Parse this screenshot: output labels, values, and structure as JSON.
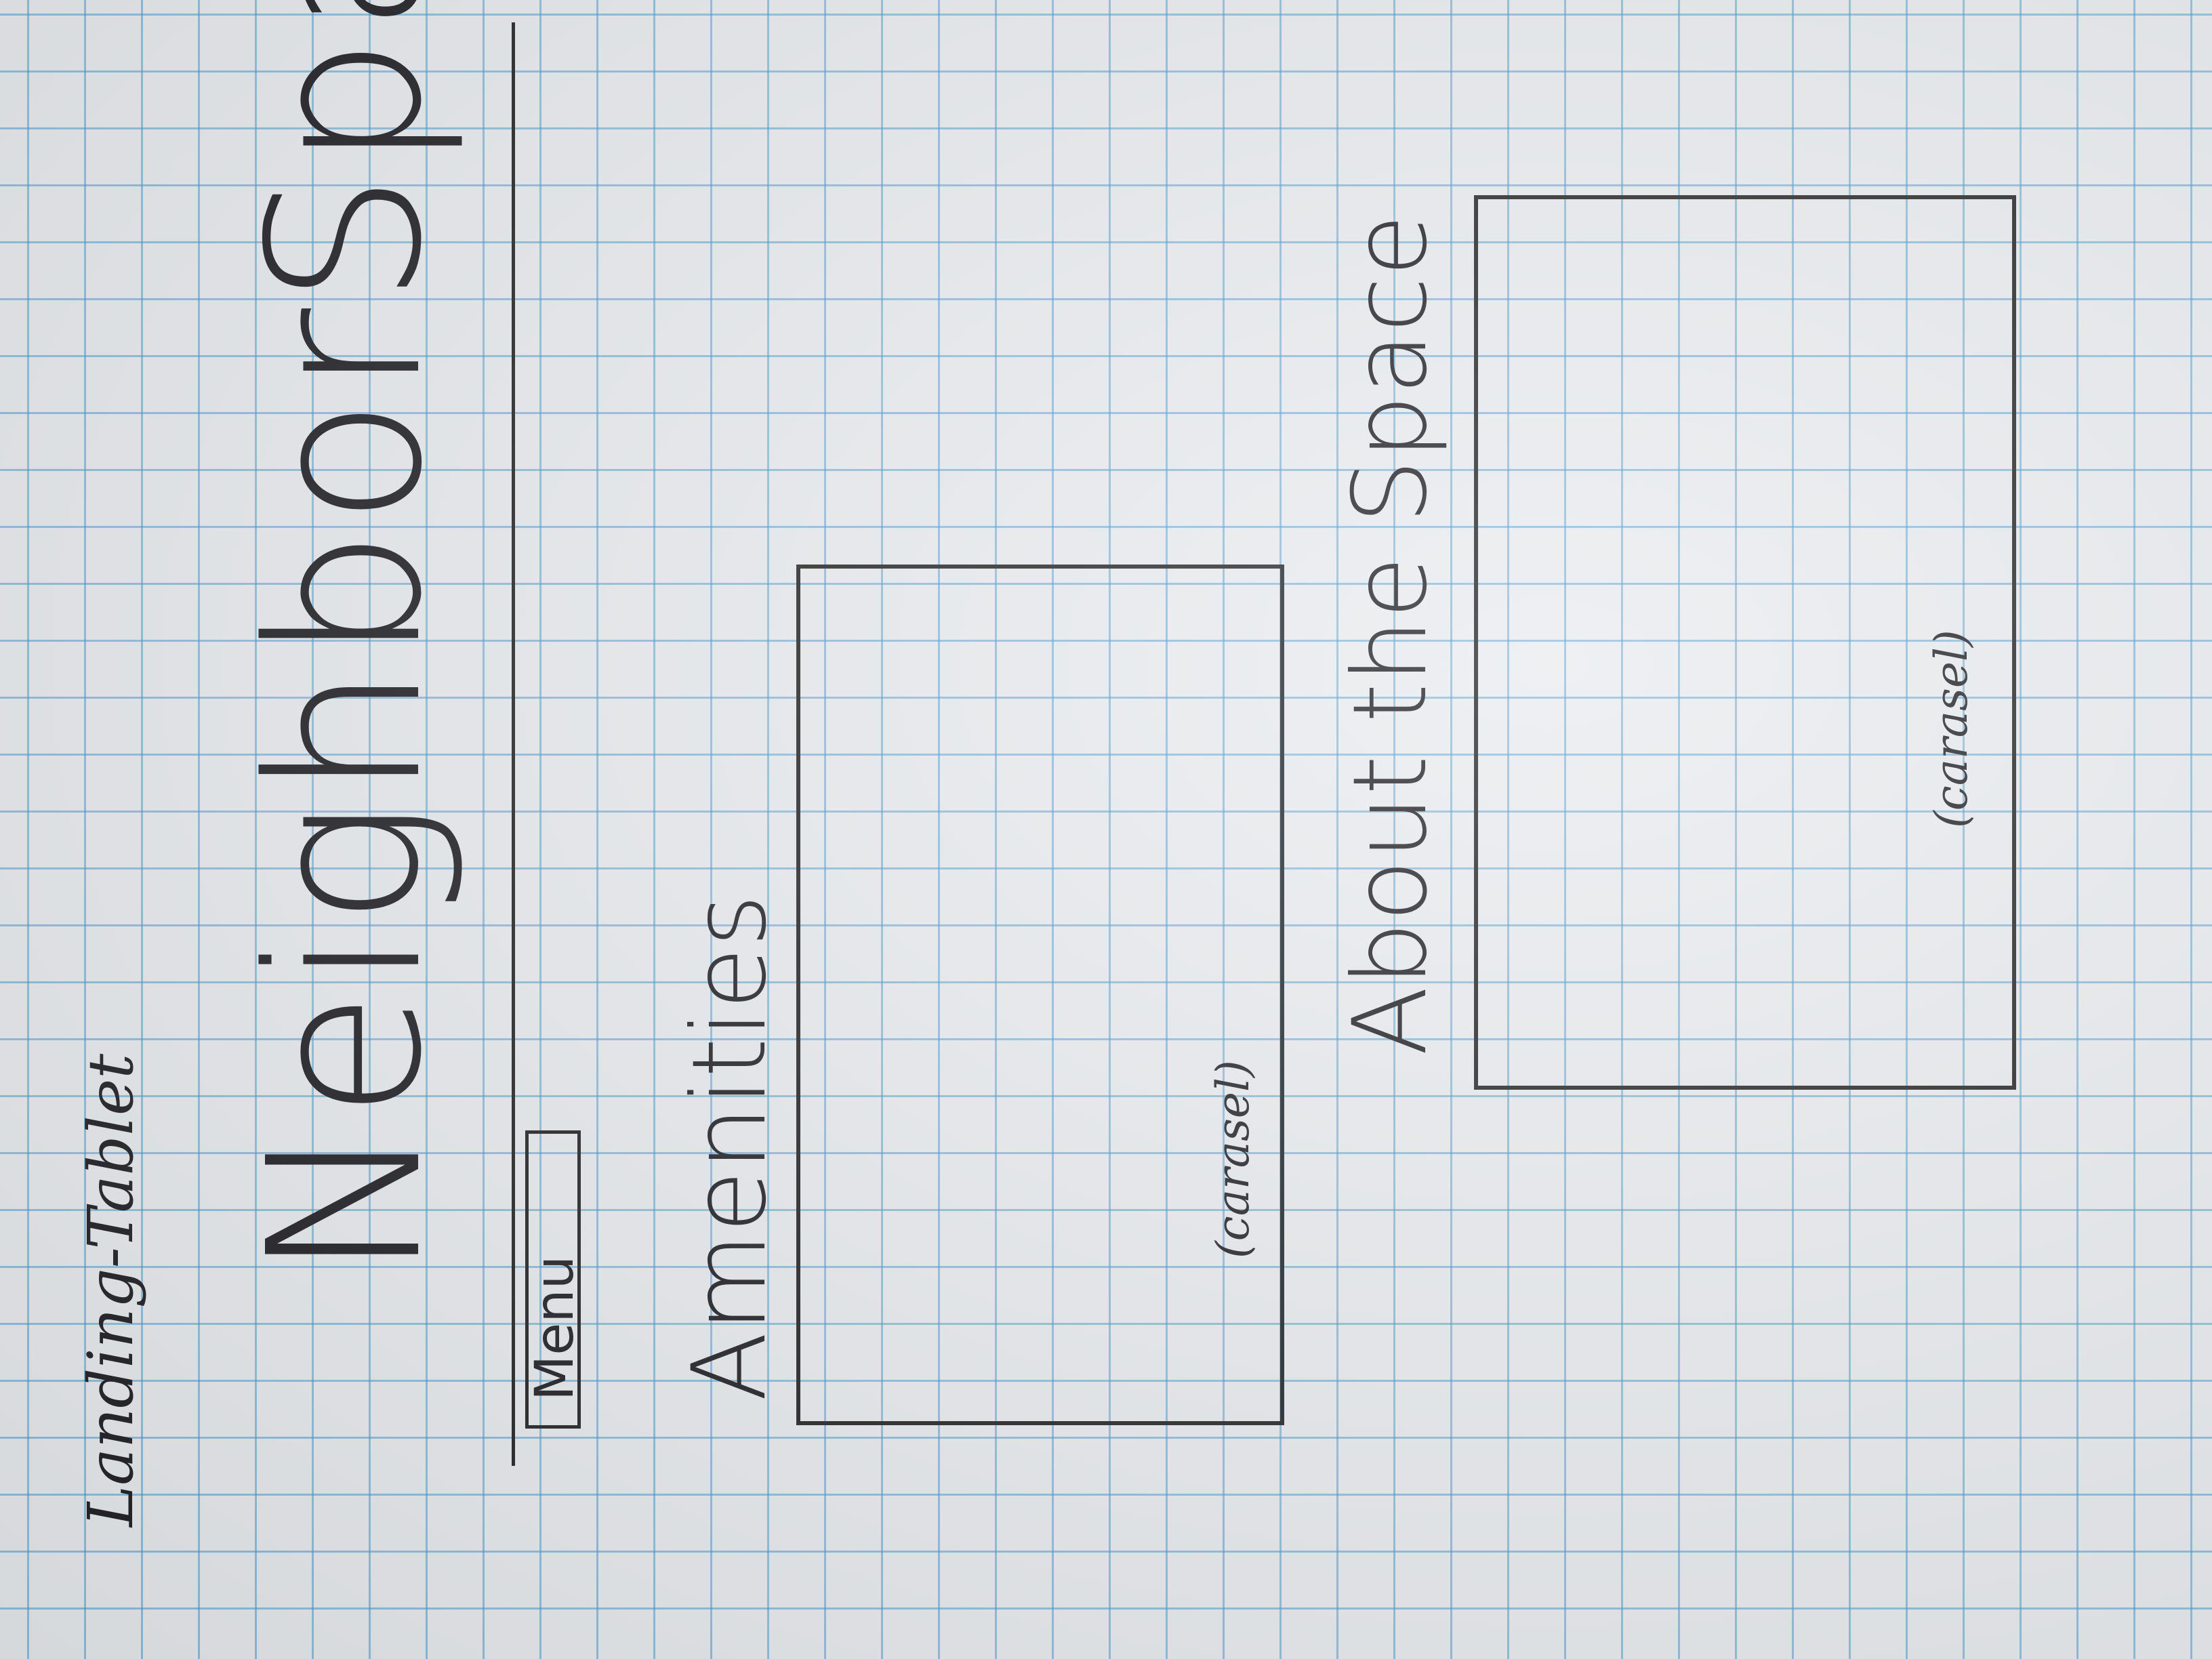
{
  "page_label": "Landing-Tablet",
  "brand": "NeighborSpace",
  "menu_label": "Menu",
  "sections": [
    {
      "title": "Amenities",
      "placeholder": "(carasel)"
    },
    {
      "title": "About the Space",
      "placeholder": "(carasel)"
    }
  ],
  "colors": {
    "ink": "#1e1e24",
    "grid": "#4696cd",
    "paper": "#e8ebee"
  }
}
